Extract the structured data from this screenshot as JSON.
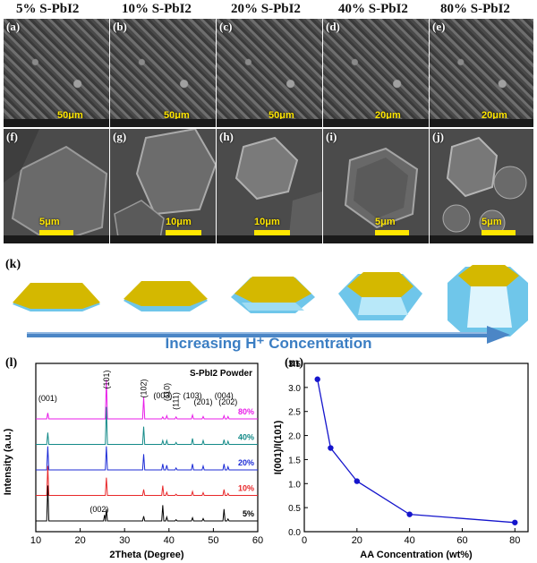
{
  "columns": [
    "5% S-PbI2",
    "10% S-PbI2",
    "20% S-PbI2",
    "40% S-PbI2",
    "80% S-PbI2"
  ],
  "top_panels": [
    {
      "label": "(a)",
      "scale": "50μm"
    },
    {
      "label": "(b)",
      "scale": "50μm"
    },
    {
      "label": "(c)",
      "scale": "50μm"
    },
    {
      "label": "(d)",
      "scale": "20μm"
    },
    {
      "label": "(e)",
      "scale": "20μm"
    }
  ],
  "bottom_panels": [
    {
      "label": "(f)",
      "scale": "5μm"
    },
    {
      "label": "(g)",
      "scale": "10μm"
    },
    {
      "label": "(h)",
      "scale": "10μm"
    },
    {
      "label": "(i)",
      "scale": "5μm"
    },
    {
      "label": "(j)",
      "scale": "5μm"
    }
  ],
  "schematic": {
    "label": "(k)",
    "arrow_text": "Increasing H⁺ Concentration",
    "colors": {
      "top_face": "#d4b800",
      "side_face": "#6fc6ea",
      "arrow": "#4b86c6"
    }
  },
  "chart_data": [
    {
      "panel": "(l)",
      "type": "line",
      "title": "S-PbI2 Powder",
      "xlabel": "2Theta (Degree)",
      "ylabel": "Intensity (a.u.)",
      "xlim": [
        10,
        60
      ],
      "xticks": [
        10,
        20,
        30,
        40,
        50,
        60
      ],
      "peaks": [
        {
          "label": "(001)",
          "x": 12.7
        },
        {
          "label": "(002)",
          "x": 25.5
        },
        {
          "label": "(101)",
          "x": 25.9
        },
        {
          "label": "(102)",
          "x": 34.3
        },
        {
          "label": "(003)",
          "x": 38.6
        },
        {
          "label": "(110)",
          "x": 39.5
        },
        {
          "label": "(111)",
          "x": 41.6
        },
        {
          "label": "(103)",
          "x": 45.3
        },
        {
          "label": "(201)",
          "x": 47.7
        },
        {
          "label": "(004)",
          "x": 52.4
        },
        {
          "label": "(202)",
          "x": 53.3
        }
      ],
      "series": [
        {
          "name": "80%",
          "color": "#e81ce8",
          "peak_heights": [
            0.15,
            0,
            1.0,
            0.55,
            0.05,
            0.08,
            0.05,
            0.1,
            0.06,
            0.08,
            0.06
          ]
        },
        {
          "name": "40%",
          "color": "#138a88",
          "peak_heights": [
            0.3,
            0,
            0.95,
            0.45,
            0.1,
            0.1,
            0.05,
            0.15,
            0.1,
            0.12,
            0.08
          ]
        },
        {
          "name": "20%",
          "color": "#1c2bd6",
          "peak_heights": [
            0.6,
            0,
            0.6,
            0.4,
            0.15,
            0.12,
            0.05,
            0.15,
            0.1,
            0.15,
            0.08
          ]
        },
        {
          "name": "10%",
          "color": "#e8282a",
          "peak_heights": [
            0.75,
            0,
            0.45,
            0.15,
            0.25,
            0.08,
            0.03,
            0.1,
            0.07,
            0.15,
            0.05
          ]
        },
        {
          "name": "5%",
          "color": "#000000",
          "peak_heights": [
            0.9,
            0.15,
            0.3,
            0.12,
            0.4,
            0.1,
            0.03,
            0.08,
            0.06,
            0.3,
            0.05
          ]
        }
      ]
    },
    {
      "panel": "(m)",
      "type": "line",
      "xlabel": "AA Concentration (wt%)",
      "ylabel": "I(001)/I(101)",
      "xlim": [
        0,
        85
      ],
      "ylim": [
        0,
        3.5
      ],
      "xticks": [
        0,
        20,
        40,
        60,
        80
      ],
      "yticks": [
        0.0,
        0.5,
        1.0,
        1.5,
        2.0,
        2.5,
        3.0,
        3.5
      ],
      "x": [
        5,
        10,
        20,
        40,
        80
      ],
      "y": [
        3.17,
        1.74,
        1.05,
        0.36,
        0.19
      ],
      "color": "#1515cc"
    }
  ]
}
